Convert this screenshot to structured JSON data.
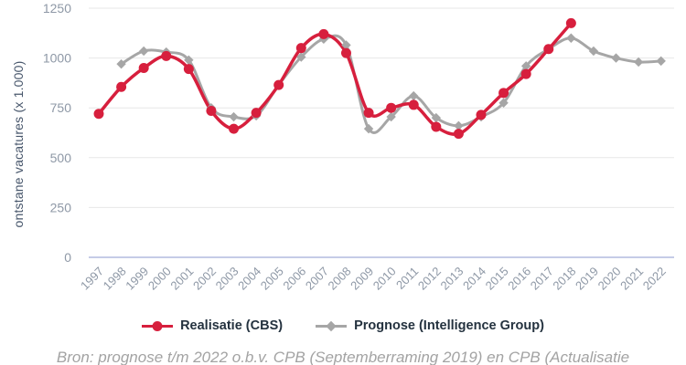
{
  "chart": {
    "y_axis_title": "ontstane vacatures (x 1.000)",
    "caption": "Bron: prognose t/m 2022 o.b.v. CPB (Septemberraming 2019) en CPB (Actualisatie",
    "legend": [
      {
        "label": "Realisatie (CBS)",
        "color": "#d71f3d",
        "marker": "circle-icon"
      },
      {
        "label": "Prognose (Intelligence Group)",
        "color": "#a6a6a6",
        "marker": "diamond-icon"
      }
    ]
  },
  "chart_data": {
    "type": "line",
    "title": "",
    "xlabel": "",
    "ylabel": "ontstane vacatures (x 1.000)",
    "x_categories": [
      "1997",
      "1998",
      "1999",
      "2000",
      "2001",
      "2002",
      "2003",
      "2004",
      "2005",
      "2006",
      "2007",
      "2008",
      "2009",
      "2010",
      "2011",
      "2012",
      "2013",
      "2014",
      "2015",
      "2016",
      "2017",
      "2018",
      "2019",
      "2020",
      "2021",
      "2022"
    ],
    "ylim": [
      0,
      1250
    ],
    "y_ticks": [
      0,
      250,
      500,
      750,
      1000,
      1250
    ],
    "grid": true,
    "legend_position": "bottom",
    "series": [
      {
        "name": "Realisatie (CBS)",
        "color": "#d71f3d",
        "marker": "circle",
        "line_width": 3.5,
        "years": [
          1997,
          1998,
          1999,
          2000,
          2001,
          2002,
          2003,
          2004,
          2005,
          2006,
          2007,
          2008,
          2009,
          2010,
          2011,
          2012,
          2013,
          2014,
          2015,
          2016,
          2017,
          2018
        ],
        "values": [
          720,
          855,
          950,
          1010,
          945,
          735,
          645,
          725,
          865,
          1050,
          1120,
          1025,
          725,
          750,
          765,
          655,
          620,
          715,
          825,
          920,
          1045,
          1175
        ]
      },
      {
        "name": "Prognose (Intelligence Group)",
        "color": "#a6a6a6",
        "marker": "diamond",
        "line_width": 3,
        "years": [
          1998,
          1999,
          2000,
          2001,
          2002,
          2003,
          2004,
          2005,
          2006,
          2007,
          2008,
          2009,
          2010,
          2011,
          2012,
          2013,
          2014,
          2015,
          2016,
          2017,
          2018,
          2019,
          2020,
          2021,
          2022
        ],
        "values": [
          970,
          1035,
          1030,
          990,
          750,
          705,
          710,
          865,
          1005,
          1095,
          1065,
          645,
          705,
          810,
          700,
          660,
          705,
          775,
          960,
          1045,
          1100,
          1035,
          1000,
          980,
          985
        ]
      }
    ]
  }
}
